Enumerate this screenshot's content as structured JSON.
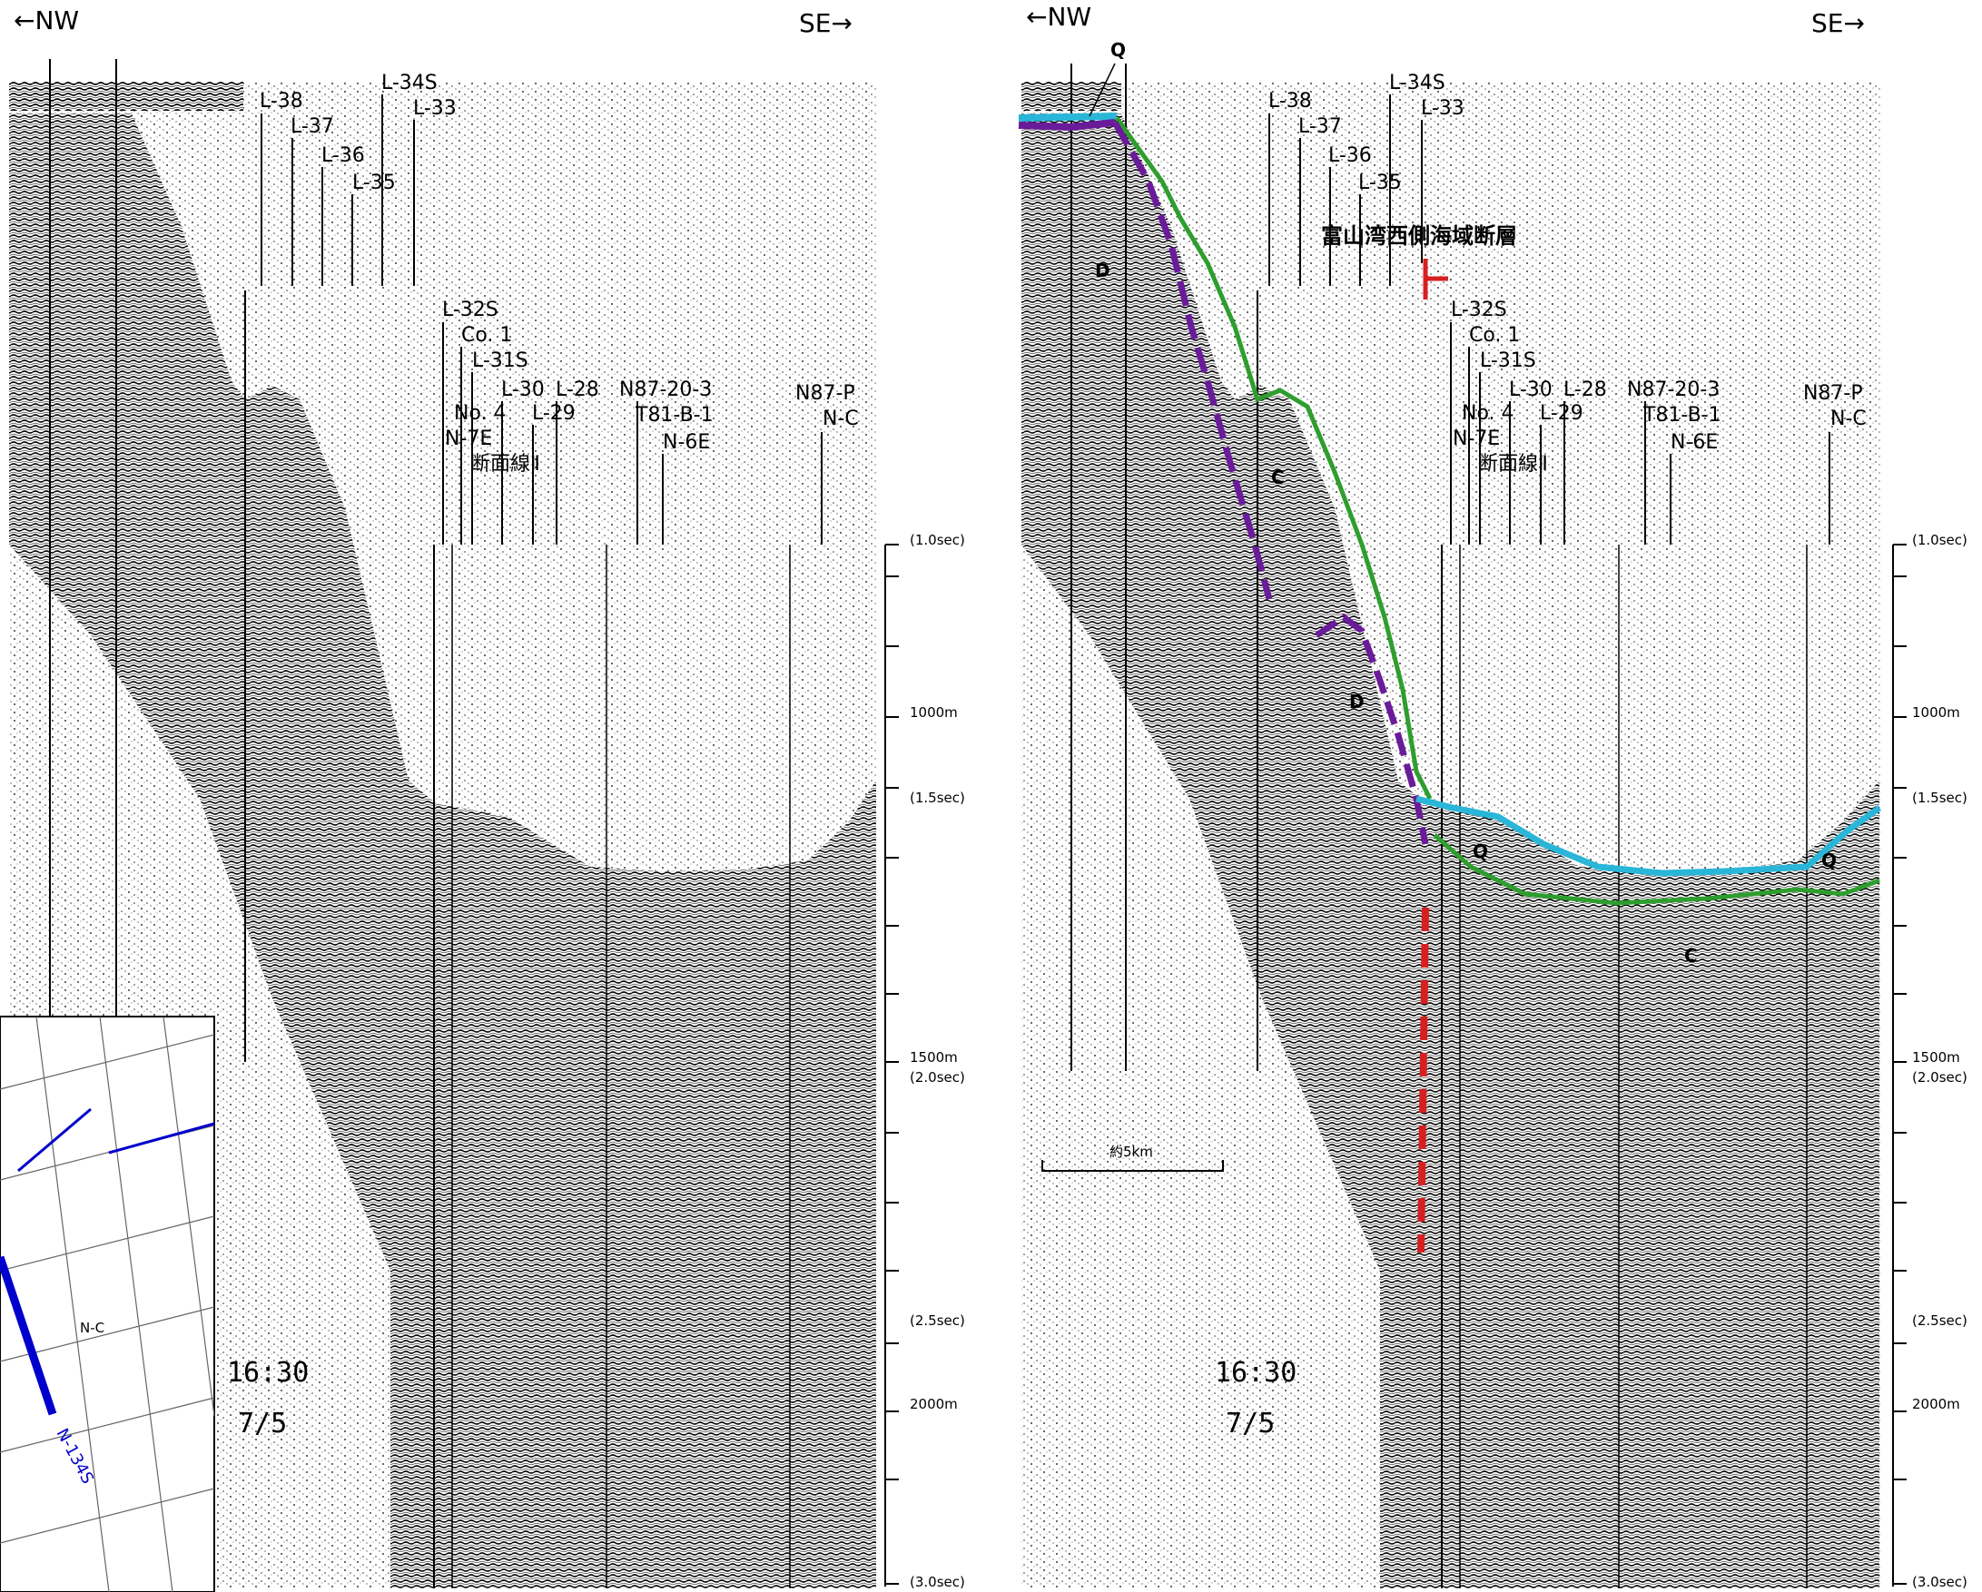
{
  "left_panel": {
    "direction_left": "←NW",
    "direction_right": "SE→",
    "lines": [
      "L-38",
      "L-37",
      "L-36",
      "L-35",
      "L-34S",
      "L-33",
      "L-32S",
      "Co. 1",
      "L-31S",
      "L-30",
      "L-29",
      "L-28",
      "No. 4",
      "N-7E",
      "N87-20-3",
      "T81-B-1",
      "N-6E",
      "N87-P",
      "N-C"
    ],
    "section_label": "断面線Ⅱ",
    "time_stamp": "16:30",
    "date_stamp": "7/5",
    "inset_line_label": "N-134S",
    "inset_nc_label": "N-C"
  },
  "right_panel": {
    "direction_left": "←NW",
    "direction_right": "SE→",
    "lines": [
      "L-38",
      "L-37",
      "L-36",
      "L-35",
      "L-34S",
      "L-33",
      "L-32S",
      "Co. 1",
      "L-31S",
      "L-30",
      "L-29",
      "L-28",
      "No. 4",
      "N-7E",
      "N87-20-3",
      "T81-B-1",
      "N-6E",
      "N87-P",
      "N-C"
    ],
    "section_label": "断面線Ⅱ",
    "fault_label": "富山湾西側海域断層",
    "units": {
      "Q_top": "Q",
      "D_upper": "D",
      "C_upper": "C",
      "D_lower": "D",
      "Q_right": "Q",
      "Q_far": "Q",
      "C_lower": "C"
    },
    "scale_bar": "約5km",
    "time_stamp": "16:30",
    "date_stamp": "7/5"
  },
  "axis": {
    "ticks": [
      "(1.0sec)",
      "1000m",
      "(1.5sec)",
      "1500m",
      "(2.0sec)",
      "(2.5sec)",
      "2000m",
      "(3.0sec)"
    ]
  },
  "colors": {
    "seafloor_Q": "#29b6d8",
    "horizon_C": "#2e9e2e",
    "horizon_D": "#6a1b9a",
    "fault": "#d62020",
    "track_line": "#0000cc"
  }
}
